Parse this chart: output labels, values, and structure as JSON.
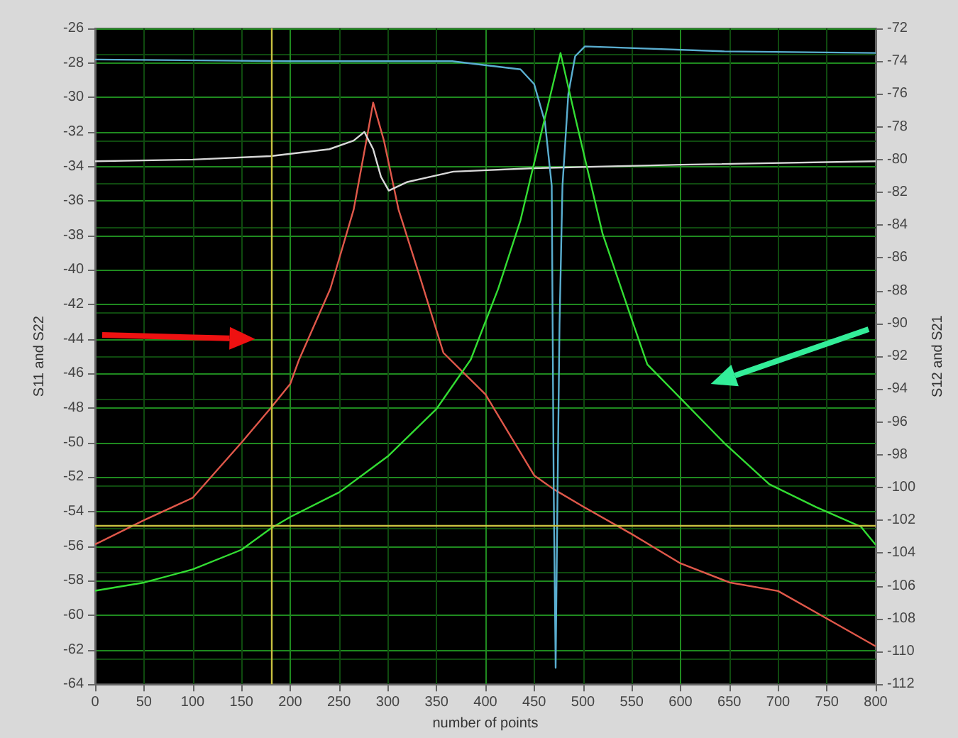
{
  "chart_data": {
    "type": "line",
    "xlabel": "number of points",
    "ylabel": "S11 and S22",
    "y2label": "S12 and S21",
    "xlim": [
      0,
      800
    ],
    "xticks": [
      0,
      50,
      100,
      150,
      200,
      250,
      300,
      350,
      400,
      450,
      500,
      550,
      600,
      650,
      700,
      750,
      800
    ],
    "ylim": [
      -64,
      -26
    ],
    "yticks": [
      -64,
      -62,
      -60,
      -58,
      -56,
      -54,
      -52,
      -50,
      -48,
      -46,
      -44,
      -42,
      -40,
      -38,
      -36,
      -34,
      -32,
      -30,
      -28,
      -26
    ],
    "y2lim": [
      -112,
      -72
    ],
    "y2ticks": [
      -112,
      -110,
      -108,
      -106,
      -104,
      -102,
      -100,
      -98,
      -96,
      -94,
      -92,
      -90,
      -88,
      -86,
      -84,
      -82,
      -80,
      -78,
      -76,
      -74,
      -72
    ],
    "grid": true,
    "marker": "none",
    "line_style": "solid",
    "series": [
      {
        "color": "#e0584a",
        "x": [
          0,
          50,
          100,
          150,
          180,
          200,
          209,
          241,
          265,
          279,
          285,
          296,
          311,
          334,
          357,
          400,
          450,
          470,
          500,
          550,
          600,
          650,
          700,
          750,
          800
        ],
        "values": [
          -55.9,
          -54.5,
          -53.2,
          -50,
          -48,
          -46.6,
          -45.2,
          -41.1,
          -36.5,
          -32.2,
          -30.3,
          -32.5,
          -36.5,
          -40.6,
          -44.8,
          -47.2,
          -51.9,
          -52.7,
          -53.7,
          -55.3,
          -57,
          -58.1,
          -58.6,
          -60.2,
          -61.8
        ]
      },
      {
        "color": "#d8d8d8",
        "x": [
          0,
          100,
          180,
          240,
          265,
          276,
          285,
          293,
          301,
          320,
          367,
          450,
          600,
          800
        ],
        "values": [
          -33.7,
          -33.6,
          -33.4,
          -33.0,
          -32.5,
          -32.0,
          -33.0,
          -34.6,
          -35.4,
          -34.9,
          -34.3,
          -34.1,
          -33.9,
          -33.7
        ]
      },
      {
        "color": "#5aaed0",
        "axis": "y2",
        "x": [
          0,
          200,
          366,
          436,
          450,
          461,
          468,
          470,
          472,
          474,
          476,
          479,
          485,
          492,
          502,
          645,
          800
        ],
        "values": [
          -73.9,
          -74.0,
          -74.0,
          -74.5,
          -75.4,
          -77.7,
          -81.6,
          -100,
          -111.0,
          -100,
          -90,
          -81.6,
          -76,
          -73.7,
          -73.1,
          -73.4,
          -73.5
        ]
      },
      {
        "color": "#33dd33",
        "axis": "y2",
        "x": [
          0,
          50,
          100,
          150,
          180,
          200,
          250,
          300,
          350,
          385,
          413,
          436,
          460,
          477,
          492,
          520,
          552,
          566,
          599,
          645,
          691,
          739,
          785,
          800
        ],
        "values": [
          -106.3,
          -105.8,
          -105.0,
          -103.8,
          -102.5,
          -101.8,
          -100.3,
          -98.1,
          -95.2,
          -92.2,
          -87.9,
          -83.7,
          -77.7,
          -73.5,
          -77.4,
          -84.5,
          -90.1,
          -92.5,
          -94.5,
          -97.3,
          -99.8,
          -101.2,
          -102.4,
          -103.5
        ]
      }
    ],
    "ref_lines": [
      {
        "axis": "x",
        "value": 180,
        "color": "#c8c040"
      },
      {
        "axis": "y",
        "value": -54.8,
        "color": "#c8c040"
      }
    ]
  }
}
